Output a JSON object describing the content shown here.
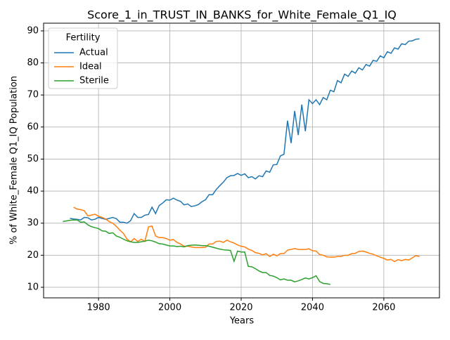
{
  "chart_data": {
    "type": "line",
    "title": "Score_1_in_TRUST_IN_BANKS_for_White_Female_Q1_IQ",
    "xlabel": "Years",
    "ylabel": "% of White_Female Q1_IQ Population",
    "legend_title": "Fertility",
    "legend": "upper left",
    "grid": true,
    "xlim": [
      1964.6,
      2075.6
    ],
    "xticks": [
      1980,
      2000,
      2020,
      2040,
      2060
    ],
    "ylim": [
      6.7,
      92.4
    ],
    "yticks": [
      10,
      20,
      30,
      40,
      50,
      60,
      70,
      80,
      90
    ],
    "x": [
      1970,
      1971,
      1972,
      1973,
      1974,
      1975,
      1976,
      1977,
      1978,
      1979,
      1980,
      1981,
      1982,
      1983,
      1984,
      1985,
      1986,
      1987,
      1988,
      1989,
      1990,
      1991,
      1992,
      1993,
      1994,
      1995,
      1996,
      1997,
      1998,
      1999,
      2000,
      2001,
      2002,
      2003,
      2004,
      2005,
      2006,
      2007,
      2008,
      2009,
      2010,
      2011,
      2012,
      2013,
      2014,
      2015,
      2016,
      2017,
      2018,
      2019,
      2020,
      2021,
      2022,
      2023,
      2024,
      2025,
      2026,
      2027,
      2028,
      2029,
      2030,
      2031,
      2032,
      2033,
      2034,
      2035,
      2036,
      2037,
      2038,
      2039,
      2040,
      2041,
      2042,
      2043,
      2044,
      2045,
      2046,
      2047,
      2048,
      2049,
      2050,
      2051,
      2052,
      2053,
      2054,
      2055,
      2056,
      2057,
      2058,
      2059,
      2060,
      2061,
      2062,
      2063,
      2064,
      2065,
      2066,
      2067,
      2068,
      2069,
      2070
    ],
    "series": [
      {
        "name": "Actual",
        "color": "#1f77b4",
        "values": [
          null,
          null,
          31.5,
          31.3,
          31.2,
          31.0,
          31.8,
          31.7,
          31.0,
          31.2,
          31.8,
          31.5,
          31.2,
          31.5,
          31.8,
          31.4,
          30.3,
          30.3,
          30.0,
          30.8,
          33.0,
          31.8,
          31.8,
          32.5,
          32.7,
          35.0,
          33.0,
          35.5,
          36.3,
          37.3,
          37.2,
          37.8,
          37.2,
          36.8,
          35.7,
          36.0,
          35.2,
          35.4,
          35.8,
          36.7,
          37.3,
          38.9,
          38.9,
          40.5,
          41.7,
          42.8,
          44.2,
          44.8,
          44.9,
          45.5,
          44.9,
          45.4,
          44.2,
          44.5,
          43.8,
          44.8,
          44.5,
          46.3,
          45.9,
          48.2,
          48.3,
          51.0,
          51.5,
          62.0,
          55.0,
          65.0,
          57.5,
          67.0,
          58.7,
          68.5,
          67.3,
          68.5,
          67.0,
          69.2,
          68.5,
          71.5,
          71.0,
          74.5,
          73.8,
          76.5,
          75.8,
          77.5,
          76.8,
          78.5,
          77.8,
          79.5,
          79.0,
          80.8,
          80.5,
          82.2,
          81.6,
          83.5,
          83.0,
          84.7,
          84.3,
          86.0,
          85.7,
          86.8,
          86.9,
          87.4,
          87.5
        ]
      },
      {
        "name": "Ideal",
        "color": "#ff7f0e",
        "values": [
          null,
          null,
          null,
          35.0,
          34.4,
          34.2,
          33.9,
          32.3,
          32.5,
          32.8,
          32.2,
          31.8,
          31.3,
          30.5,
          30.0,
          29.0,
          27.8,
          26.8,
          25.0,
          24.2,
          25.2,
          24.3,
          25.0,
          24.3,
          28.8,
          29.1,
          26.0,
          25.5,
          25.5,
          25.2,
          24.7,
          24.9,
          24.0,
          23.5,
          22.8,
          22.8,
          22.6,
          22.4,
          22.4,
          22.4,
          22.5,
          23.5,
          23.5,
          24.3,
          24.4,
          24.0,
          24.7,
          24.2,
          23.8,
          23.2,
          22.8,
          22.6,
          21.9,
          21.5,
          20.8,
          20.6,
          20.1,
          20.5,
          19.6,
          20.3,
          19.8,
          20.5,
          20.5,
          21.6,
          21.8,
          22.1,
          21.8,
          21.8,
          21.8,
          22.0,
          21.4,
          21.3,
          20.2,
          20.0,
          19.5,
          19.4,
          19.4,
          19.6,
          19.6,
          20.0,
          20.0,
          20.5,
          20.6,
          21.2,
          21.3,
          21.0,
          20.6,
          20.3,
          19.8,
          19.4,
          19.0,
          18.5,
          18.7,
          18.0,
          18.6,
          18.3,
          18.7,
          18.5,
          19.2,
          19.9,
          19.6
        ]
      },
      {
        "name": "Sterile",
        "color": "#2ca02c",
        "values": [
          30.5,
          30.7,
          30.9,
          31.0,
          31.0,
          30.3,
          30.4,
          29.5,
          28.9,
          28.6,
          28.3,
          27.6,
          27.5,
          26.8,
          27.0,
          26.0,
          25.6,
          25.0,
          24.5,
          24.2,
          24.0,
          24.0,
          24.2,
          24.4,
          24.7,
          24.5,
          24.1,
          23.6,
          23.5,
          23.2,
          22.9,
          22.9,
          22.7,
          22.8,
          22.6,
          23.0,
          23.1,
          23.2,
          23.1,
          23.0,
          23.0,
          22.8,
          22.5,
          22.2,
          21.9,
          21.7,
          21.6,
          21.5,
          18.1,
          21.3,
          21.0,
          21.0,
          16.5,
          16.4,
          15.8,
          15.1,
          14.6,
          14.6,
          13.7,
          13.5,
          13.0,
          12.3,
          12.6,
          12.2,
          12.2,
          11.7,
          12.0,
          12.4,
          12.9,
          12.6,
          13.0,
          13.6,
          11.8,
          11.2,
          11.1,
          10.9,
          null,
          null,
          null,
          null,
          null,
          null,
          null,
          null,
          null,
          null,
          null,
          null,
          null,
          null,
          null,
          null,
          null,
          null,
          null,
          null,
          null,
          null,
          null,
          null,
          null
        ]
      }
    ]
  }
}
